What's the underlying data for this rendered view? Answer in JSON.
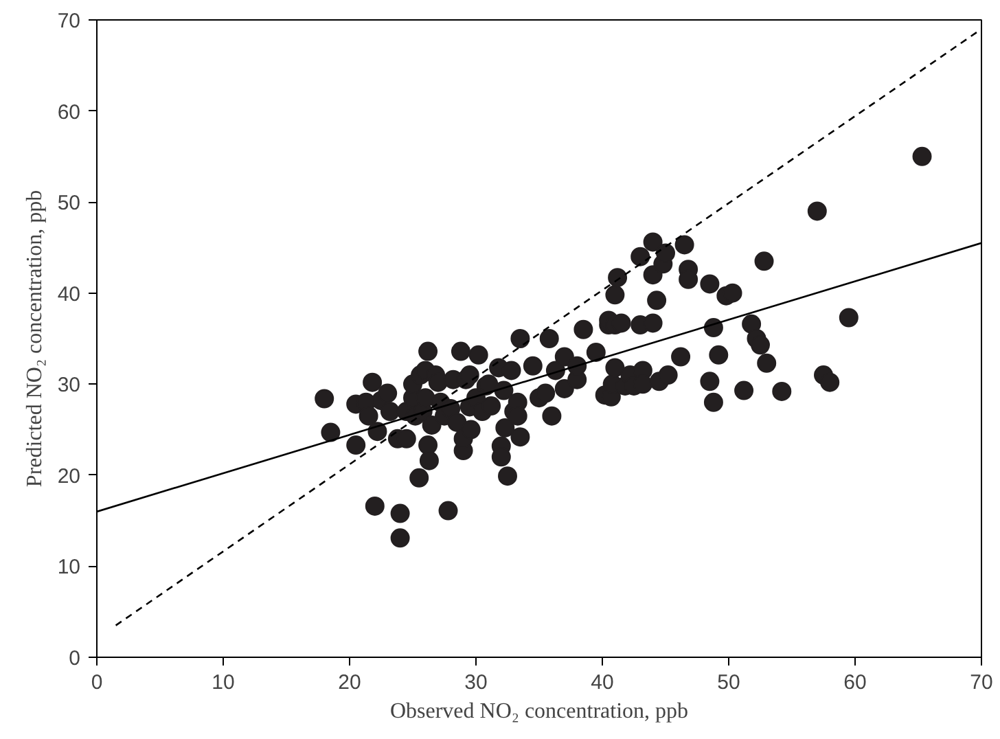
{
  "chart_data": {
    "type": "scatter",
    "xlabel": "Observed NO₂ concentration, ppb",
    "ylabel": "Predicted NO₂ concentration, ppb",
    "xlim": [
      0,
      70
    ],
    "ylim": [
      0,
      70
    ],
    "xticks": [
      0,
      10,
      20,
      30,
      40,
      50,
      60,
      70
    ],
    "yticks": [
      0,
      10,
      20,
      30,
      40,
      50,
      60,
      70
    ],
    "grid": false,
    "series": [
      {
        "color": "#231f20",
        "marker": "circle",
        "x": [
          18,
          18.5,
          20.5,
          20.5,
          21.3,
          21.5,
          21.8,
          22,
          22.2,
          22.5,
          23,
          23.2,
          23.8,
          24,
          24,
          24.5,
          24.5,
          25,
          25,
          25.2,
          25.5,
          25.6,
          25.8,
          26,
          26,
          26.2,
          26.2,
          26.3,
          26.5,
          26.8,
          27,
          27.2,
          27.5,
          27.8,
          28,
          28.2,
          28.5,
          28.8,
          29,
          29,
          29.2,
          29.5,
          29.5,
          29.6,
          30,
          30.2,
          30.5,
          30.8,
          31,
          31.2,
          31.8,
          32,
          32,
          32.2,
          32.3,
          32.5,
          32.8,
          33,
          33.3,
          33.5,
          33.5,
          33.3,
          34.5,
          35,
          35.5,
          35.8,
          36,
          36.3,
          37,
          37,
          38,
          38,
          38.5,
          39.5,
          40.2,
          40.5,
          40.5,
          40.7,
          40.8,
          41,
          41,
          41,
          41.2,
          41.5,
          41.8,
          42.2,
          42.5,
          43,
          43,
          43.2,
          43.2,
          44,
          44,
          44,
          44.3,
          44.5,
          44.8,
          45,
          45.2,
          46.2,
          46.5,
          46.8,
          46.8,
          48.5,
          48.5,
          48.8,
          48.8,
          49.2,
          49.8,
          50.3,
          51.2,
          51.8,
          52.2,
          52.5,
          52.8,
          53,
          54.2,
          57,
          57.5,
          58,
          59.5,
          65.3
        ],
        "values": [
          28.4,
          24.7,
          23.3,
          27.8,
          28,
          26.5,
          30.2,
          16.6,
          24.8,
          28.2,
          29,
          27,
          24,
          15.8,
          13.1,
          24,
          27,
          28.5,
          30,
          26.5,
          19.7,
          31,
          27,
          28.5,
          31.5,
          33.6,
          23.3,
          21.6,
          25.5,
          31,
          30.2,
          28,
          26.5,
          16.1,
          27.3,
          30.5,
          25.8,
          33.6,
          22.7,
          24,
          30.5,
          27.5,
          31,
          25,
          28.5,
          33.2,
          27,
          29.8,
          30,
          27.6,
          31.8,
          23.2,
          22,
          29.3,
          25.2,
          19.9,
          31.5,
          27,
          28,
          24.2,
          35,
          26.5,
          32,
          28.5,
          29,
          35,
          26.5,
          31.5,
          29.5,
          33,
          30.5,
          32,
          36,
          33.5,
          28.8,
          36.5,
          37,
          28.6,
          30,
          31.8,
          36.5,
          39.8,
          41.7,
          36.7,
          29.8,
          31,
          29.8,
          44,
          36.5,
          31.5,
          30,
          45.6,
          36.7,
          42,
          39.2,
          30.3,
          43.2,
          44.4,
          31,
          33,
          45.3,
          42.6,
          41.5,
          41,
          30.3,
          36.2,
          28,
          33.2,
          39.7,
          40,
          29.3,
          36.6,
          35,
          34.3,
          43.5,
          32.3,
          29.2,
          49,
          31,
          30.2,
          37.3,
          55
        ]
      },
      {
        "type": "line",
        "color": "#000000",
        "line_style": "solid",
        "x": [
          0,
          70
        ],
        "values": [
          16,
          45.5
        ]
      },
      {
        "type": "line",
        "color": "#000000",
        "line_style": "dashed",
        "x": [
          1.5,
          70
        ],
        "values": [
          3.5,
          69
        ]
      }
    ]
  }
}
